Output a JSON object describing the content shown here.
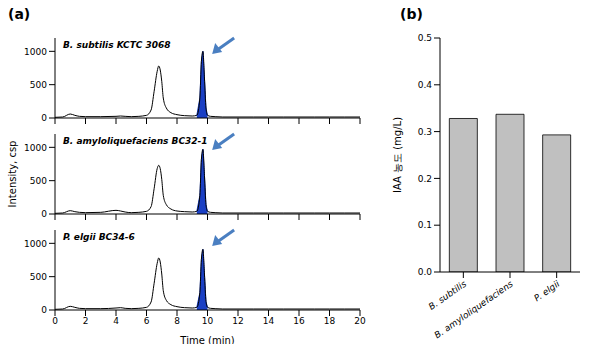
{
  "panel_labels": [
    "(a)",
    "(b)"
  ],
  "chart_data": [
    {
      "type": "line",
      "title": "B. subtilis KCTC 3068",
      "color": "#000000",
      "tick_labels": "y",
      "x": [
        0,
        0.5,
        1,
        1.3,
        1.6,
        2,
        3,
        4,
        4.3,
        4.6,
        5,
        5.5,
        6,
        6.3,
        6.5,
        6.7,
        6.8,
        6.9,
        7.0,
        7.1,
        7.3,
        7.6,
        8,
        8.5,
        9,
        9.3,
        9.5,
        9.6,
        9.7,
        9.8,
        9.9,
        10.0,
        10.2,
        10.5,
        11,
        12,
        13,
        14,
        15,
        16,
        17,
        18,
        19,
        20
      ],
      "values": [
        10,
        15,
        60,
        40,
        25,
        20,
        20,
        25,
        30,
        25,
        20,
        25,
        40,
        120,
        400,
        700,
        780,
        720,
        550,
        300,
        150,
        80,
        50,
        35,
        30,
        40,
        300,
        850,
        1000,
        600,
        150,
        40,
        25,
        20,
        15,
        15,
        15,
        15,
        15,
        15,
        15,
        15,
        15,
        15
      ],
      "shaded_peak": {
        "from": 9.3,
        "to": 10.0,
        "color": "#1a3fc4"
      },
      "xlim": [
        0,
        20
      ],
      "xticks": [
        0,
        2,
        4,
        6,
        8,
        10,
        12,
        14,
        16,
        18,
        20
      ],
      "ylim": [
        0,
        1200
      ],
      "yticks": [
        0,
        500,
        1000
      ]
    },
    {
      "type": "line",
      "title": "B. amyloliquefaciens BC32-1",
      "y_label": "Intensity, csp",
      "color": "#000000",
      "tick_labels": "y",
      "x": [
        0,
        0.5,
        1,
        1.3,
        1.6,
        2,
        3,
        4,
        4.3,
        4.6,
        5,
        5.5,
        6,
        6.3,
        6.5,
        6.7,
        6.8,
        6.9,
        7.0,
        7.1,
        7.3,
        7.6,
        8,
        8.5,
        9,
        9.3,
        9.5,
        9.6,
        9.7,
        9.8,
        9.9,
        10.0,
        10.2,
        10.5,
        11,
        12,
        13,
        14,
        15,
        16,
        17,
        18,
        19,
        20
      ],
      "values": [
        10,
        15,
        50,
        35,
        25,
        20,
        25,
        55,
        45,
        30,
        20,
        25,
        40,
        110,
        380,
        680,
        730,
        680,
        520,
        280,
        140,
        75,
        45,
        35,
        30,
        40,
        280,
        820,
        970,
        580,
        140,
        40,
        25,
        20,
        15,
        15,
        15,
        15,
        15,
        15,
        15,
        15,
        15,
        15
      ],
      "shaded_peak": {
        "from": 9.3,
        "to": 10.0,
        "color": "#1a3fc4"
      },
      "xlim": [
        0,
        20
      ],
      "xticks": [
        0,
        2,
        4,
        6,
        8,
        10,
        12,
        14,
        16,
        18,
        20
      ],
      "ylim": [
        0,
        1200
      ],
      "yticks": [
        0,
        500,
        1000
      ]
    },
    {
      "type": "line",
      "title": "P. elgii BC34-6",
      "x_label": "Time (min)",
      "color": "#000000",
      "x": [
        0,
        0.5,
        1,
        1.3,
        1.6,
        2,
        3,
        4,
        4.3,
        4.6,
        5,
        5.5,
        6,
        6.3,
        6.5,
        6.7,
        6.8,
        6.9,
        7.0,
        7.1,
        7.3,
        7.6,
        8,
        8.5,
        9,
        9.3,
        9.5,
        9.6,
        9.7,
        9.8,
        9.9,
        10.0,
        10.2,
        10.5,
        11,
        12,
        13,
        14,
        15,
        16,
        17,
        18,
        19,
        20
      ],
      "values": [
        10,
        15,
        55,
        40,
        25,
        20,
        20,
        30,
        35,
        25,
        20,
        25,
        40,
        120,
        400,
        700,
        780,
        720,
        540,
        290,
        145,
        80,
        50,
        35,
        30,
        40,
        260,
        760,
        910,
        540,
        130,
        40,
        25,
        20,
        15,
        15,
        15,
        15,
        15,
        15,
        15,
        15,
        15,
        15
      ],
      "shaded_peak": {
        "from": 9.3,
        "to": 10.0,
        "color": "#1a3fc4"
      },
      "xlim": [
        0,
        20
      ],
      "xticks": [
        0,
        2,
        4,
        6,
        8,
        10,
        12,
        14,
        16,
        18,
        20
      ],
      "ylim": [
        0,
        1200
      ],
      "yticks": [
        0,
        500,
        1000
      ]
    },
    {
      "type": "bar",
      "y_label": "IAA 농도 (mg/L)",
      "categories": [
        "B. subtilis",
        "B. amyloliquefaciens",
        "P. elgii"
      ],
      "values": [
        0.328,
        0.337,
        0.293
      ],
      "color": "#c0c0c0",
      "ylim": [
        0,
        0.5
      ],
      "yticks": [
        {
          "value": 0,
          "label": "0.0"
        },
        0.1,
        0.2,
        0.3,
        0.4,
        0.5
      ]
    }
  ]
}
